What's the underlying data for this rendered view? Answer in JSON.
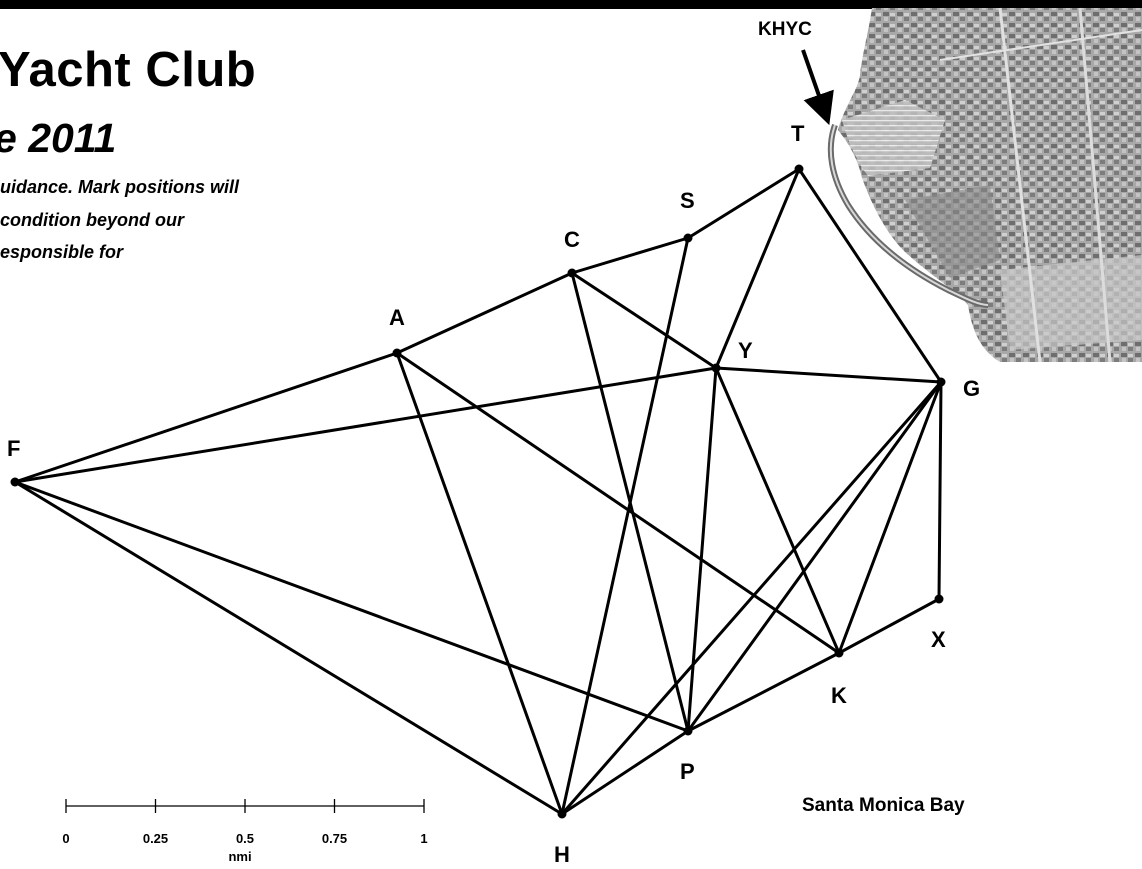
{
  "header": {
    "title": "Yacht Club",
    "subtitle": "e 2011",
    "disclaimer_lines": [
      "uidance.  Mark positions will",
      "condition beyond our",
      "esponsible for"
    ]
  },
  "club_label": "KHYC",
  "water_label": "Santa Monica Bay",
  "marks": [
    {
      "id": "A",
      "label": "A"
    },
    {
      "id": "C",
      "label": "C"
    },
    {
      "id": "S",
      "label": "S"
    },
    {
      "id": "T",
      "label": "T"
    },
    {
      "id": "Y",
      "label": "Y"
    },
    {
      "id": "G",
      "label": "G"
    },
    {
      "id": "F",
      "label": "F"
    },
    {
      "id": "X",
      "label": "X"
    },
    {
      "id": "K",
      "label": "K"
    },
    {
      "id": "P",
      "label": "P"
    },
    {
      "id": "H",
      "label": "H"
    }
  ],
  "legs": [
    [
      "F",
      "A"
    ],
    [
      "A",
      "C"
    ],
    [
      "C",
      "S"
    ],
    [
      "S",
      "T"
    ],
    [
      "T",
      "G"
    ],
    [
      "T",
      "Y"
    ],
    [
      "F",
      "Y"
    ],
    [
      "Y",
      "G"
    ],
    [
      "C",
      "Y"
    ],
    [
      "C",
      "P"
    ],
    [
      "A",
      "H"
    ],
    [
      "A",
      "K"
    ],
    [
      "F",
      "P"
    ],
    [
      "F",
      "H"
    ],
    [
      "S",
      "H"
    ],
    [
      "Y",
      "P"
    ],
    [
      "Y",
      "K"
    ],
    [
      "G",
      "H"
    ],
    [
      "G",
      "P"
    ],
    [
      "G",
      "K"
    ],
    [
      "G",
      "X"
    ],
    [
      "X",
      "K"
    ],
    [
      "K",
      "P"
    ],
    [
      "P",
      "H"
    ]
  ],
  "scale": {
    "ticks": [
      "0",
      "0.25",
      "0.5",
      "0.75",
      "1"
    ],
    "unit": "nmi"
  },
  "colors": {
    "background": "#ffffff",
    "ink": "#000000",
    "aerial": "#9a9a9a"
  }
}
